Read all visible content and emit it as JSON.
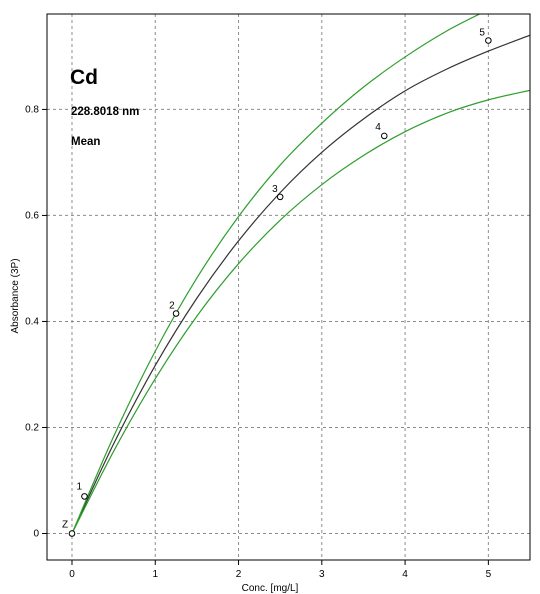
{
  "chart_data": {
    "type": "scatter",
    "title": "Cd",
    "annotations": [
      "228.8018 nm",
      "Mean"
    ],
    "xlabel": "Conc. [mg/L]",
    "ylabel": "Absorbance (3P)",
    "xlim": [
      -0.3,
      5.5
    ],
    "ylim": [
      -0.05,
      0.98
    ],
    "x_ticks": [
      0,
      1,
      2,
      3,
      4,
      5
    ],
    "y_ticks": [
      0,
      0.2,
      0.4,
      0.6,
      0.8
    ],
    "y_tick_labels": [
      "0",
      "0.2",
      "0.4",
      "0.6",
      "0.8"
    ],
    "grid": true,
    "grid_style": "dashed",
    "points": [
      {
        "label": "Z",
        "x": 0,
        "y": 0
      },
      {
        "label": "1",
        "x": 0.15,
        "y": 0.07
      },
      {
        "label": "2",
        "x": 1.25,
        "y": 0.415
      },
      {
        "label": "3",
        "x": 2.5,
        "y": 0.635
      },
      {
        "label": "4",
        "x": 3.75,
        "y": 0.75
      },
      {
        "label": "5",
        "x": 5.0,
        "y": 0.93
      }
    ],
    "series": [
      {
        "role": "calibration-fit",
        "color": "#333333",
        "x": [
          0,
          0.5,
          1,
          1.5,
          2,
          2.5,
          3,
          3.5,
          4,
          4.5,
          5,
          5.5
        ],
        "y": [
          0,
          0.169,
          0.317,
          0.444,
          0.552,
          0.643,
          0.719,
          0.782,
          0.835,
          0.876,
          0.91,
          0.94
        ]
      },
      {
        "role": "upper-confidence-band",
        "color": "#2e9e2e",
        "x": [
          0,
          0.5,
          1,
          1.5,
          2,
          2.5,
          3,
          3.5,
          4,
          4.5,
          5,
          5.5
        ],
        "y": [
          0,
          0.183,
          0.344,
          0.482,
          0.598,
          0.695,
          0.774,
          0.842,
          0.899,
          0.948,
          0.988,
          1.024
        ]
      },
      {
        "role": "lower-confidence-band",
        "color": "#2e9e2e",
        "x": [
          0,
          0.5,
          1,
          1.5,
          2,
          2.5,
          3,
          3.5,
          4,
          4.5,
          5,
          5.5
        ],
        "y": [
          0,
          0.155,
          0.292,
          0.41,
          0.509,
          0.591,
          0.658,
          0.713,
          0.758,
          0.793,
          0.818,
          0.836
        ]
      }
    ],
    "colors": {
      "fit": "#333333",
      "band": "#2e9e2e",
      "grid": "#8c8c8c",
      "frame": "#000000"
    }
  }
}
